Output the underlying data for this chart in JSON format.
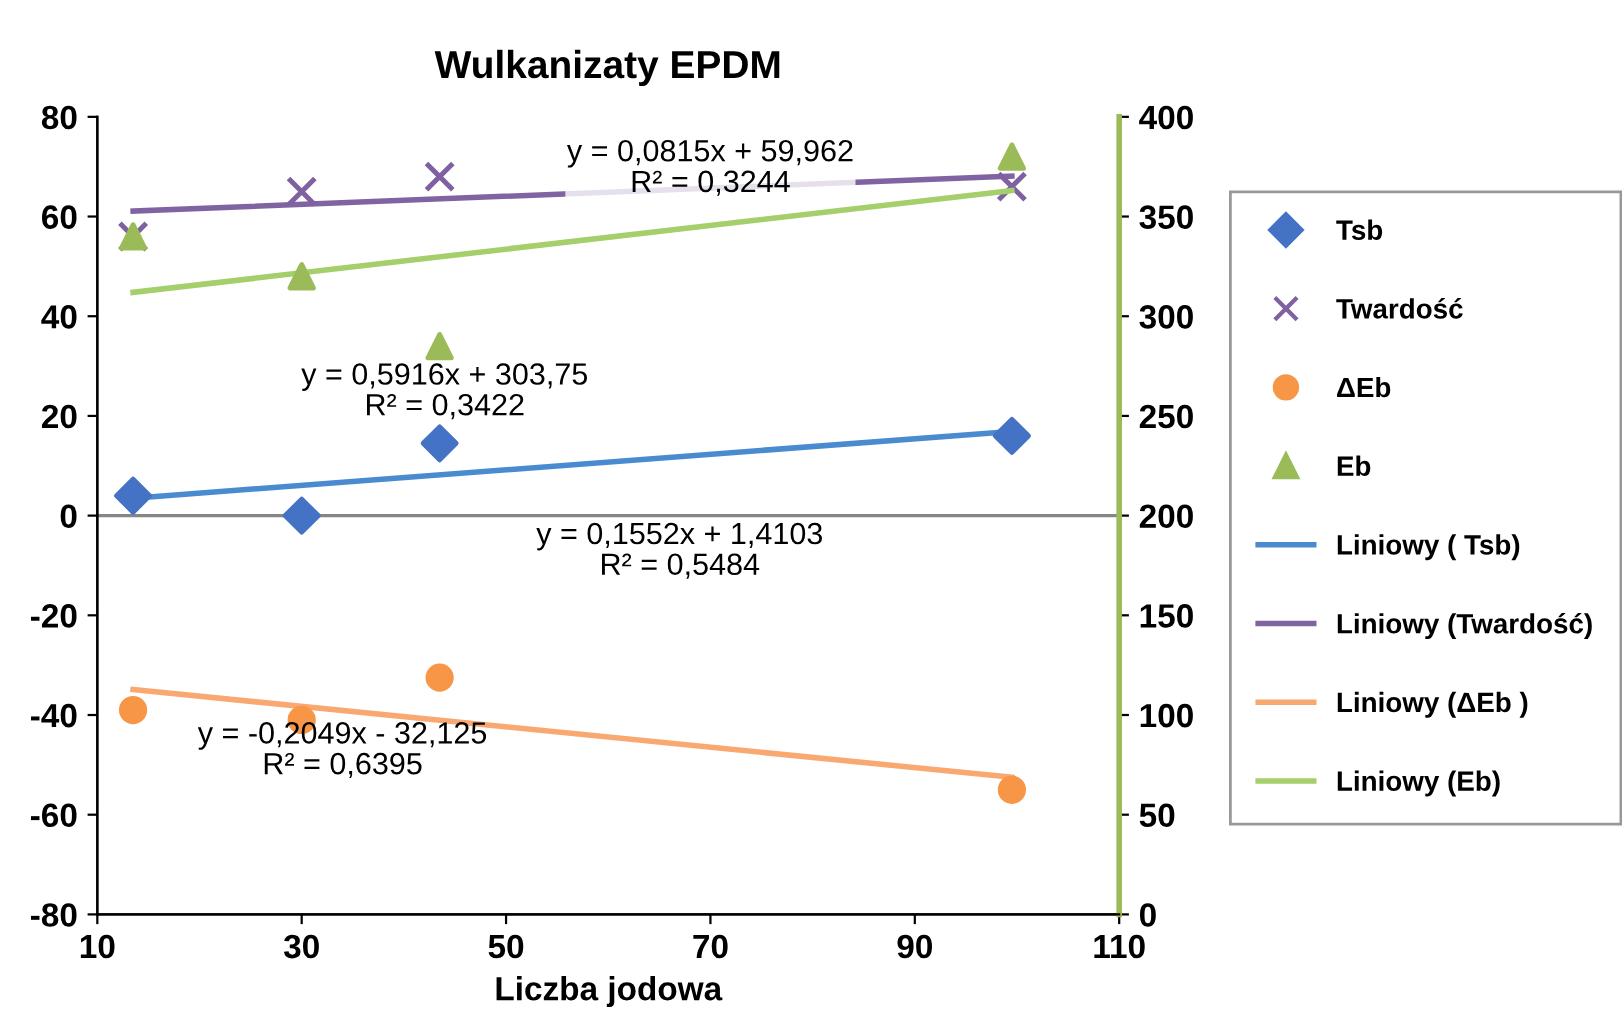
{
  "chart_data": {
    "type": "scatter",
    "title": "Wulkanizaty EPDM",
    "xlabel": "Liczba jodowa",
    "xlim": [
      10,
      110
    ],
    "xticks": [
      10,
      30,
      50,
      70,
      90,
      110
    ],
    "ylim": [
      -80,
      80
    ],
    "yticks": [
      -80,
      -60,
      -40,
      -20,
      0,
      20,
      40,
      60,
      80
    ],
    "y2lim": [
      0,
      400
    ],
    "y2ticks": [
      0,
      50,
      100,
      150,
      200,
      250,
      300,
      350,
      400
    ],
    "grid": false,
    "legend": "right",
    "ref_lines": [
      {
        "axis": "y",
        "value": 0,
        "color": "#868686"
      }
    ],
    "series": [
      {
        "name": "Tsb",
        "marker": "diamond",
        "color": "#4472c4",
        "x": [
          13.5,
          30,
          43.5,
          99.5
        ],
        "values": [
          4,
          0,
          14.5,
          16
        ]
      },
      {
        "name": "Twardość",
        "marker": "cross",
        "color": "#7f60a0",
        "x": [
          13.5,
          30,
          43.5,
          99.5
        ],
        "values": [
          56,
          65,
          68,
          66
        ]
      },
      {
        "name": "ΔEb",
        "marker": "circle",
        "color": "#f79646",
        "x": [
          13.5,
          30,
          43.5,
          99.5
        ],
        "values": [
          -39,
          -41,
          -32.5,
          -55
        ]
      },
      {
        "name": "Eb",
        "marker": "triangle",
        "color": "#9bbb59",
        "axis": "y2",
        "x": [
          13.5,
          30,
          43.5,
          99.5
        ],
        "values": [
          340,
          320,
          285,
          380
        ]
      },
      {
        "name": "Liniowy ( Tsb)",
        "type": "line",
        "marker": "none",
        "color": "#4a8bd0",
        "x": [
          13.5,
          99.5
        ],
        "values": [
          3.5,
          16.9
        ]
      },
      {
        "name": "Liniowy (Twardość)",
        "type": "line",
        "marker": "none",
        "color": "#8064a2",
        "x": [
          13.5,
          99.5
        ],
        "values": [
          61.1,
          68.1
        ]
      },
      {
        "name": "Liniowy (ΔEb )",
        "type": "line",
        "marker": "none",
        "color": "#f8a870",
        "x": [
          13.5,
          99.5
        ],
        "values": [
          -34.9,
          -52.5
        ]
      },
      {
        "name": "Liniowy (Eb)",
        "type": "line",
        "marker": "none",
        "color": "#a5cf6a",
        "axis": "y2",
        "x": [
          13.5,
          99.5
        ],
        "values": [
          312,
          363
        ]
      }
    ],
    "annotations": [
      "y = 0,0815x + 59,962\nR² = 0,3244",
      "y = 0,5916x + 303,75\nR² = 0,3422",
      "y = 0,1552x + 1,4103\nR² = 0,5484",
      "y = -0,2049x - 32,125\nR² = 0,6395"
    ]
  }
}
